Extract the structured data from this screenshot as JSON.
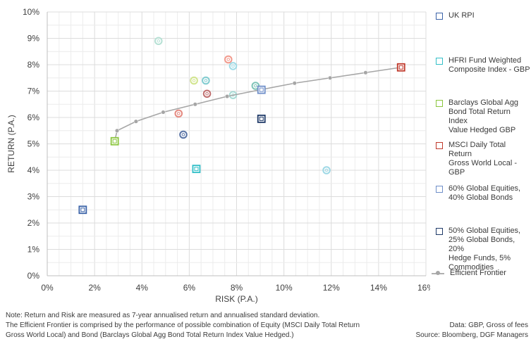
{
  "chart_data": {
    "type": "scatter",
    "title": "",
    "xlabel": "RISK (P.A.)",
    "ylabel": "RETURN (P.A.)",
    "xlim": [
      0,
      16
    ],
    "ylim": [
      0,
      10
    ],
    "x_ticks": [
      "0%",
      "2%",
      "4%",
      "6%",
      "8%",
      "10%",
      "12%",
      "14%",
      "16%"
    ],
    "y_ticks": [
      "0%",
      "1%",
      "2%",
      "3%",
      "4%",
      "5%",
      "6%",
      "7%",
      "8%",
      "9%",
      "10%"
    ],
    "grid": true,
    "legend_position": "right",
    "series": [
      {
        "name": "UK RPI",
        "marker": "square",
        "color": "#3b63a8",
        "points": [
          {
            "x": 1.5,
            "y": 2.5
          }
        ]
      },
      {
        "name": "HFRI Fund Weighted\nComposite Index - GBP",
        "marker": "square",
        "color": "#33bfc8",
        "points": [
          {
            "x": 6.3,
            "y": 4.05
          }
        ]
      },
      {
        "name": "Barclays Global Agg\nBond Total Return Index\nValue Hedged GBP",
        "marker": "square",
        "color": "#8cc63f",
        "points": [
          {
            "x": 2.85,
            "y": 5.1
          }
        ]
      },
      {
        "name": "MSCI Daily Total Return\nGross World Local - GBP",
        "marker": "square",
        "color": "#c0392b",
        "points": [
          {
            "x": 14.95,
            "y": 7.9
          }
        ]
      },
      {
        "name": "60% Global Equities,\n40% Global Bonds",
        "marker": "square",
        "color": "#6f8fc9",
        "points": [
          {
            "x": 9.05,
            "y": 7.05
          }
        ]
      },
      {
        "name": "50% Global Equities,\n25% Global Bonds, 20%\nHedge Funds, 5%\nCommodities",
        "marker": "square",
        "color": "#1f3a68",
        "points": [
          {
            "x": 9.05,
            "y": 5.95
          }
        ]
      },
      {
        "name": "Efficient Frontier",
        "marker": "line",
        "color": "#a6a6a6",
        "points": [
          {
            "x": 2.85,
            "y": 5.1
          },
          {
            "x": 2.95,
            "y": 5.5
          },
          {
            "x": 3.75,
            "y": 5.85
          },
          {
            "x": 4.9,
            "y": 6.2
          },
          {
            "x": 6.25,
            "y": 6.5
          },
          {
            "x": 7.6,
            "y": 6.8
          },
          {
            "x": 9.0,
            "y": 7.05
          },
          {
            "x": 10.45,
            "y": 7.3
          },
          {
            "x": 11.95,
            "y": 7.5
          },
          {
            "x": 13.45,
            "y": 7.7
          },
          {
            "x": 14.95,
            "y": 7.9
          }
        ]
      }
    ],
    "unlabeled_points": [
      {
        "x": 4.7,
        "y": 8.9,
        "color": "#b7e1d5"
      },
      {
        "x": 7.65,
        "y": 8.2,
        "color": "#f29b8e"
      },
      {
        "x": 7.85,
        "y": 7.95,
        "color": "#9fdbe6"
      },
      {
        "x": 6.7,
        "y": 7.4,
        "color": "#82ccd0"
      },
      {
        "x": 6.2,
        "y": 7.4,
        "color": "#d2e58f"
      },
      {
        "x": 8.8,
        "y": 7.2,
        "color": "#7fc4b8"
      },
      {
        "x": 6.75,
        "y": 6.9,
        "color": "#c07070"
      },
      {
        "x": 7.85,
        "y": 6.85,
        "color": "#a8dcd6"
      },
      {
        "x": 5.55,
        "y": 6.15,
        "color": "#e58a80"
      },
      {
        "x": 5.75,
        "y": 5.35,
        "color": "#5b75a6"
      },
      {
        "x": 11.8,
        "y": 4.0,
        "color": "#9fd9e6"
      }
    ]
  },
  "notes": {
    "line1": "Note: Return and Risk are measured as 7-year annualised return and annualised standard deviation.",
    "line2": "The Efficient Frontier is comprised by the performance of possible combination of Equity (MSCI Daily Total Return",
    "line3": "Gross World Local) and Bond (Barclays Global Agg Bond Total Return Index Value Hedged.)"
  },
  "source": {
    "line1": "Data: GBP, Gross of fees",
    "line2": "Source: Bloomberg, DGF Managers"
  }
}
